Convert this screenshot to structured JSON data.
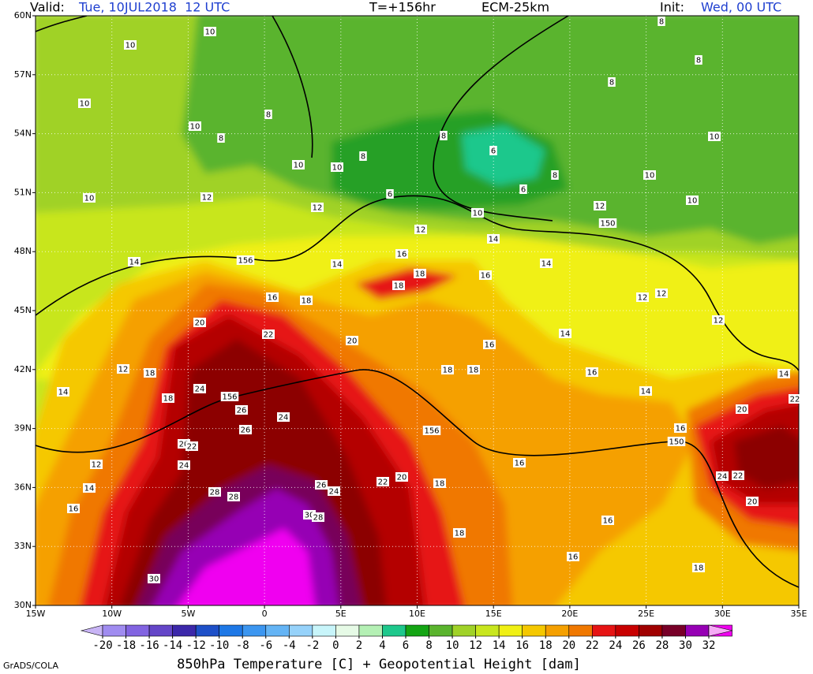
{
  "header": {
    "valid_label": "Valid:",
    "valid_time": "Tue, 10JUL2018  12 UTC",
    "lead": "T=+156hr",
    "model": "ECM-25km",
    "init_label": "Init:",
    "init_time": "Wed, 00 UTC"
  },
  "map": {
    "xlim": [
      -15,
      35
    ],
    "ylim": [
      30,
      60
    ],
    "xticks": [
      {
        "value": -15,
        "label": "15W"
      },
      {
        "value": -10,
        "label": "10W"
      },
      {
        "value": -5,
        "label": "5W"
      },
      0,
      {
        "value": 5,
        "label": "5E"
      },
      {
        "value": 10,
        "label": "10E"
      },
      {
        "value": 15,
        "label": "15E"
      },
      {
        "value": 20,
        "label": "20E"
      },
      {
        "value": 25,
        "label": "25E"
      },
      {
        "value": 30,
        "label": "30E"
      },
      {
        "value": 35,
        "label": "35E"
      }
    ],
    "yticks": [
      {
        "value": 60,
        "label": "60N"
      },
      {
        "value": 57,
        "label": "57N"
      },
      {
        "value": 54,
        "label": "54N"
      },
      {
        "value": 51,
        "label": "51N"
      },
      {
        "value": 48,
        "label": "48N"
      },
      {
        "value": 45,
        "label": "45N"
      },
      {
        "value": 42,
        "label": "42N"
      },
      {
        "value": 39,
        "label": "39N"
      },
      {
        "value": 36,
        "label": "36N"
      },
      {
        "value": 33,
        "label": "33N"
      },
      {
        "value": 30,
        "label": "30N"
      }
    ],
    "contour_labels": [
      10,
      10,
      10,
      8,
      10,
      8,
      10,
      10,
      8,
      6,
      8,
      6,
      6,
      8,
      10,
      12,
      150,
      10,
      10,
      10,
      8,
      8,
      8,
      12,
      10,
      12,
      12,
      14,
      14,
      156,
      14,
      16,
      18,
      18,
      16,
      14,
      16,
      18,
      12,
      12,
      12,
      20,
      22,
      20,
      16,
      14,
      12,
      18,
      18,
      18,
      16,
      14,
      18,
      24,
      156,
      26,
      24,
      26,
      156,
      20,
      22,
      24,
      14,
      22,
      20,
      14,
      16,
      150,
      12,
      14,
      16,
      28,
      28,
      26,
      24,
      22,
      20,
      18,
      16,
      24,
      22,
      20,
      30,
      28,
      18,
      16,
      16,
      18,
      30
    ]
  },
  "colorbar": {
    "ticks": [
      -20,
      -18,
      -16,
      -14,
      -12,
      -10,
      -8,
      -6,
      -4,
      -2,
      0,
      2,
      4,
      6,
      8,
      10,
      12,
      14,
      16,
      18,
      20,
      22,
      24,
      26,
      28,
      30,
      32
    ],
    "colors": [
      "#c8b4f5",
      "#a08cf0",
      "#8264e1",
      "#6446c8",
      "#3c28aa",
      "#1e50c8",
      "#1e78e6",
      "#3c96f0",
      "#64b4f5",
      "#96d2fa",
      "#c8f5fa",
      "#e6fae6",
      "#b4f0b4",
      "#1ec88c",
      "#14a514",
      "#5ab42d",
      "#a0d228",
      "#c8e61e",
      "#f0f014",
      "#f5c800",
      "#f5a000",
      "#f07800",
      "#e61414",
      "#c80000",
      "#a00000",
      "#780028",
      "#9600b4",
      "#f000f0",
      "#f5aaf5"
    ],
    "title": "850hPa Temperature [C] + Geopotential Height [dam]"
  },
  "footer": "GrADS/COLA"
}
